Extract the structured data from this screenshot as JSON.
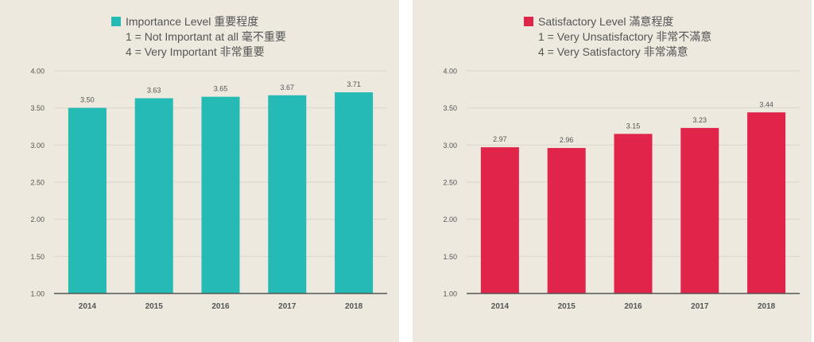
{
  "colors": {
    "left_bar": "#25bab4",
    "right_bar": "#e0244a",
    "panel_bg": "#ede9df",
    "grid": "#d9d5cb",
    "axis": "#555555",
    "text": "#555555"
  },
  "chart_data": [
    {
      "type": "bar",
      "legend": {
        "title": "Importance Level 重要程度",
        "line1": "1 = Not Important at all 毫不重要",
        "line2": "4 = Very Important 非常重要"
      },
      "categories": [
        "2014",
        "2015",
        "2016",
        "2017",
        "2018"
      ],
      "series": [
        {
          "name": "Importance Level 重要程度",
          "values": [
            3.5,
            3.63,
            3.65,
            3.67,
            3.71
          ]
        }
      ],
      "data_labels": [
        "3.50",
        "3.63",
        "3.65",
        "3.67",
        "3.71"
      ],
      "ylim": [
        1.0,
        4.0
      ],
      "yticks": [
        1.0,
        1.5,
        2.0,
        2.5,
        3.0,
        3.5,
        4.0
      ],
      "ytick_labels": [
        "1.00",
        "1.50",
        "2.00",
        "2.50",
        "3.00",
        "3.50",
        "4.00"
      ],
      "grid": true,
      "legend_position": "top-center",
      "color": "#25bab4"
    },
    {
      "type": "bar",
      "legend": {
        "title": "Satisfactory Level 滿意程度",
        "line1": "1 = Very Unsatisfactory 非常不滿意",
        "line2": "4 = Very Satisfactory 非常滿意"
      },
      "categories": [
        "2014",
        "2015",
        "2016",
        "2017",
        "2018"
      ],
      "series": [
        {
          "name": "Satisfactory Level 滿意程度",
          "values": [
            2.97,
            2.96,
            3.15,
            3.23,
            3.44
          ]
        }
      ],
      "data_labels": [
        "2.97",
        "2.96",
        "3.15",
        "3.23",
        "3.44"
      ],
      "ylim": [
        1.0,
        4.0
      ],
      "yticks": [
        1.0,
        1.5,
        2.0,
        2.5,
        3.0,
        3.5,
        4.0
      ],
      "ytick_labels": [
        "1.00",
        "1.50",
        "2.00",
        "2.50",
        "3.00",
        "3.50",
        "4.00"
      ],
      "grid": true,
      "legend_position": "top-center",
      "color": "#e0244a"
    }
  ]
}
